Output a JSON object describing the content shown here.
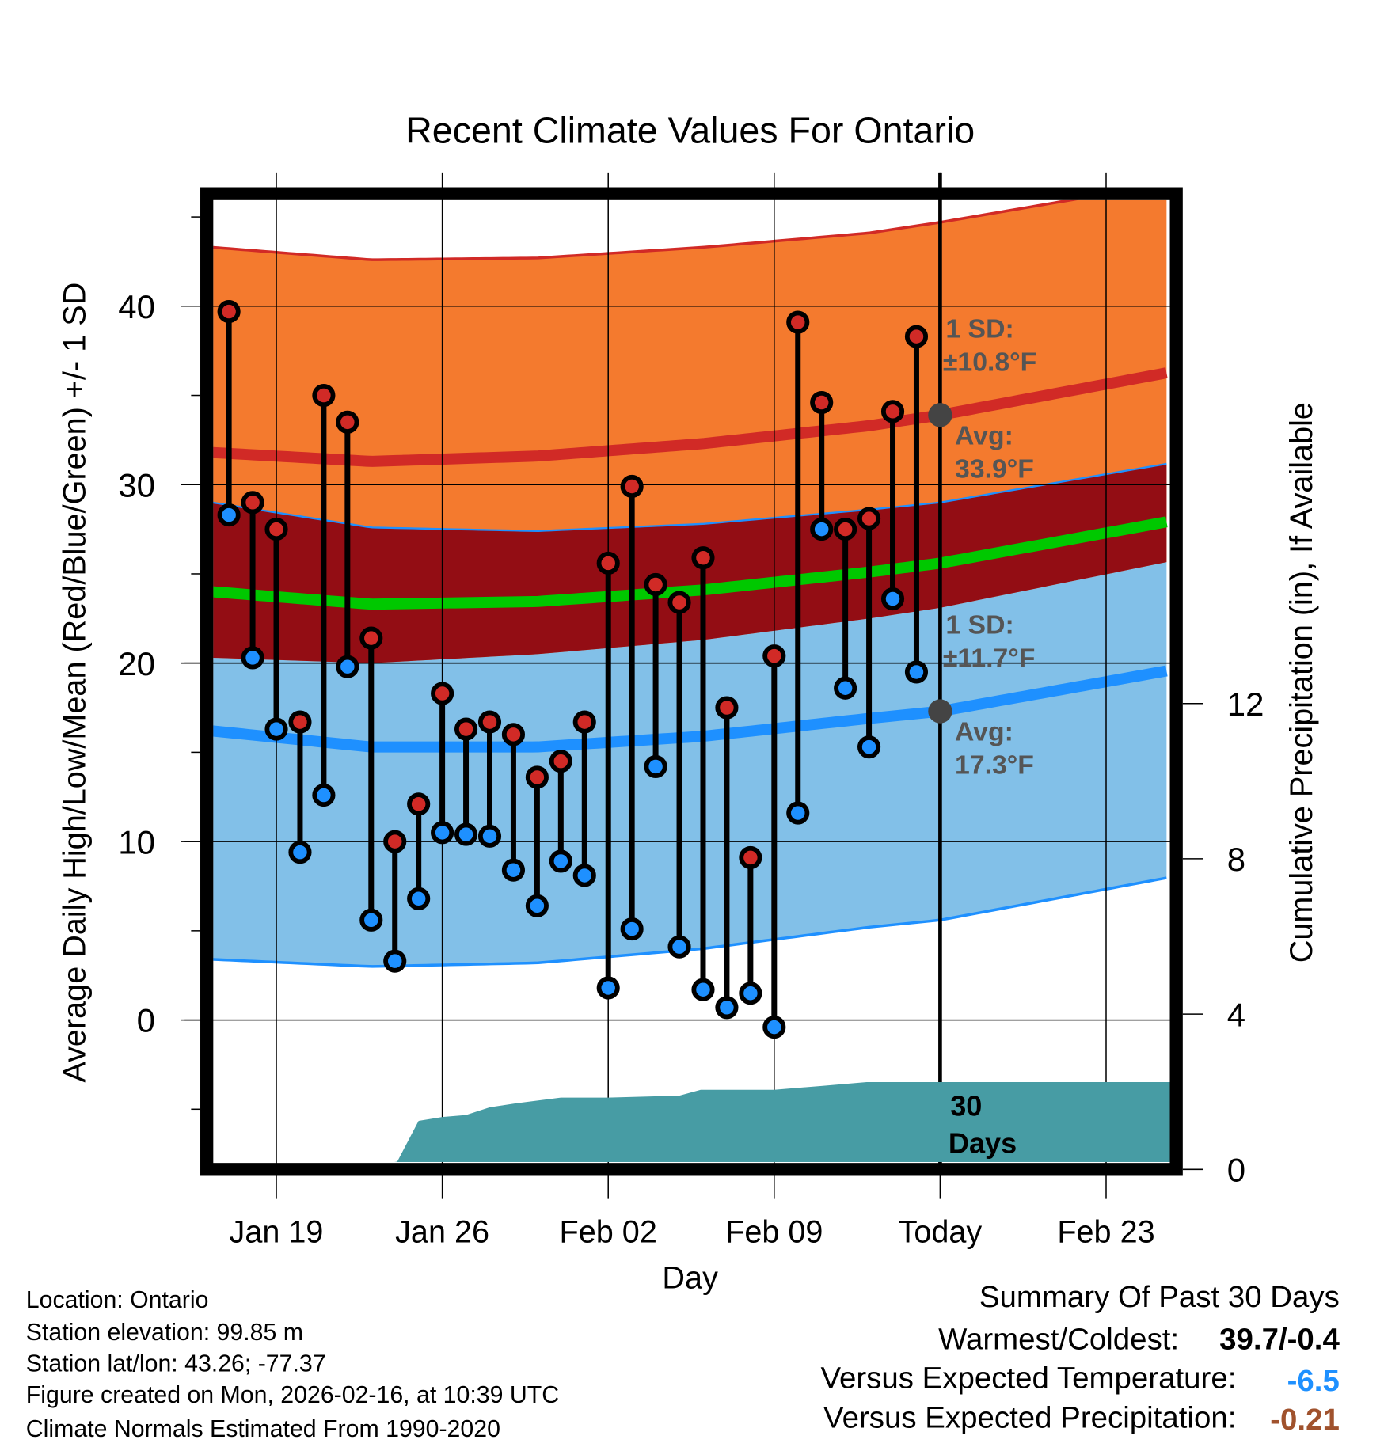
{
  "chart_data": {
    "type": "line",
    "title": "Recent Climate Values For Ontario",
    "xlabel": "Day",
    "ylabel": "Average Daily High/Low/Mean (Red/Blue/Green) +/- 1 SD",
    "y2label": "Cumulative Precipitation (in), If Available",
    "ylim": [
      -8,
      46
    ],
    "y2lim": [
      0,
      12.4
    ],
    "xlim_days": [
      -0.7,
      39.7
    ],
    "x_ticks": [
      {
        "day": 2,
        "label": "Jan 19"
      },
      {
        "day": 9,
        "label": "Jan 26"
      },
      {
        "day": 16,
        "label": "Feb 02"
      },
      {
        "day": 23,
        "label": "Feb 09"
      },
      {
        "day": 30,
        "label": "Today"
      },
      {
        "day": 37,
        "label": "Feb 23"
      }
    ],
    "y_ticks": [
      0,
      10,
      20,
      30,
      40
    ],
    "y2_ticks": [
      0,
      4,
      8,
      12
    ],
    "day_zero": "Jan 17",
    "observations": {
      "dates": [
        "Jan 17",
        "Jan 18",
        "Jan 19",
        "Jan 20",
        "Jan 21",
        "Jan 22",
        "Jan 23",
        "Jan 24",
        "Jan 25",
        "Jan 26",
        "Jan 27",
        "Jan 28",
        "Jan 29",
        "Jan 30",
        "Jan 31",
        "Feb 01",
        "Feb 02",
        "Feb 03",
        "Feb 04",
        "Feb 05",
        "Feb 06",
        "Feb 07",
        "Feb 08",
        "Feb 09",
        "Feb 10",
        "Feb 11",
        "Feb 12",
        "Feb 13",
        "Feb 14",
        "Feb 15"
      ],
      "high": [
        39.7,
        29.0,
        27.5,
        16.7,
        35.0,
        33.5,
        21.4,
        10.0,
        12.1,
        18.3,
        16.3,
        16.7,
        16.0,
        13.6,
        14.5,
        16.7,
        25.6,
        29.9,
        24.4,
        23.4,
        25.9,
        17.5,
        9.1,
        20.4,
        39.1,
        34.6,
        27.5,
        28.1,
        34.1,
        38.3
      ],
      "low": [
        28.3,
        20.3,
        16.3,
        9.4,
        12.6,
        19.8,
        5.6,
        3.3,
        6.8,
        10.5,
        10.4,
        10.3,
        8.4,
        6.4,
        8.9,
        8.1,
        1.8,
        5.1,
        14.2,
        4.1,
        1.7,
        0.7,
        1.5,
        -0.4,
        11.6,
        27.5,
        18.6,
        15.3,
        23.6,
        19.5
      ]
    },
    "normals": {
      "days": [
        -0.7,
        6,
        13,
        20,
        27,
        30,
        39.7
      ],
      "avg_high": [
        31.8,
        31.3,
        31.6,
        32.3,
        33.3,
        33.9,
        36.3
      ],
      "sd_high": [
        11.5,
        11.3,
        11.1,
        11.0,
        10.8,
        10.8,
        10.6
      ],
      "avg_low": [
        16.2,
        15.3,
        15.3,
        15.9,
        16.9,
        17.3,
        19.6
      ],
      "sd_low": [
        12.8,
        12.3,
        12.1,
        11.9,
        11.7,
        11.7,
        11.6
      ]
    },
    "precip": {
      "days": [
        -0.7,
        5.5,
        5.9,
        7.1,
        8.0,
        9,
        10,
        11,
        12.1,
        14,
        16,
        19,
        19.9,
        23,
        25,
        26.9,
        30,
        39.7
      ],
      "cumulative": [
        0,
        0,
        0.1,
        0.2,
        1.25,
        1.35,
        1.4,
        1.6,
        1.7,
        1.85,
        1.85,
        1.9,
        2.05,
        2.05,
        2.15,
        2.25,
        2.25,
        2.25
      ]
    },
    "annotations": {
      "high_sd_label": "1 SD:",
      "high_sd_value": "±10.8°F",
      "high_avg_label": "Avg:",
      "high_avg_value": "33.9°F",
      "low_sd_label": "1 SD:",
      "low_sd_value": "±11.7°F",
      "low_avg_label": "Avg:",
      "low_avg_value": "17.3°F",
      "window_line1": "30",
      "window_line2": "Days"
    },
    "colors": {
      "high_band": "#f47a2e",
      "low_band": "#82c0e8",
      "overlap": "#930d14",
      "high_line": "#d12a26",
      "low_line": "#1e90ff",
      "mean_line": "#00c800",
      "precip": "#479ca4",
      "high_dot": "#d12a26",
      "low_dot": "#1e90ff"
    }
  },
  "footer": {
    "location": "Location: Ontario",
    "elevation": "Station elevation: 99.85 m",
    "latlon": "Station lat/lon: 43.26; -77.37",
    "created": "Figure created on Mon, 2026-02-16, at 10:39 UTC",
    "normals": "Climate Normals Estimated From 1990-2020"
  },
  "summary": {
    "title": "Summary Of Past 30 Days",
    "warmest_label": "Warmest/Coldest:",
    "warmest_value": "39.7/-0.4",
    "temp_label": "Versus Expected Temperature:",
    "temp_value": "-6.5",
    "temp_color": "#1e90ff",
    "precip_label": "Versus Expected Precipitation:",
    "precip_value": "-0.21",
    "precip_color": "#a0522d"
  }
}
